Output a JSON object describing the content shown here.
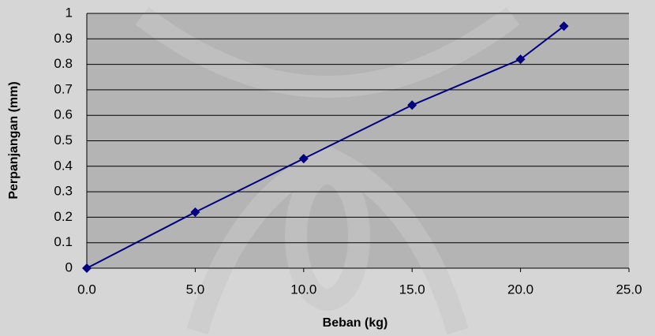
{
  "chart_data": {
    "type": "line",
    "x_label": "Beban (kg)",
    "y_label": "Perpanjangan (mm)",
    "x": [
      0,
      5,
      10,
      15,
      20,
      22
    ],
    "series": [
      {
        "color": "#000080",
        "values": [
          0,
          0.22,
          0.43,
          0.64,
          0.82,
          0.95
        ]
      }
    ],
    "xlim": [
      0,
      25
    ],
    "xticks": [
      {
        "value": 0,
        "label": "0.0"
      },
      {
        "value": 5,
        "label": "5.0"
      },
      {
        "value": 10,
        "label": "10.0"
      },
      {
        "value": 15,
        "label": "15.0"
      },
      {
        "value": 20,
        "label": "20.0"
      },
      {
        "value": 25,
        "label": "25.0"
      }
    ],
    "ylim": [
      0,
      1
    ],
    "yticks": [
      0,
      0.1,
      0.2,
      0.3,
      0.4,
      0.5,
      0.6,
      0.7,
      0.8,
      0.9,
      1
    ],
    "grid": true
  }
}
